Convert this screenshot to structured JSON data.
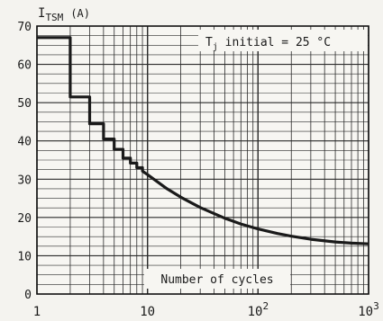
{
  "chart_data": {
    "type": "line",
    "x_scale": "log",
    "xlim": [
      1,
      1000
    ],
    "ylim": [
      0,
      70
    ],
    "grid": true,
    "ylabel": {
      "main": "I",
      "sub": "TSM",
      "unit": "(A)"
    },
    "xlabel": "Number of cycles",
    "annotation": {
      "main": "T",
      "sub": "j",
      "rest": " initial = 25 °C"
    },
    "y_ticks": [
      "0",
      "10",
      "20",
      "30",
      "40",
      "50",
      "60",
      "70"
    ],
    "x_tick_labels": [
      {
        "x": 1,
        "base": "1",
        "exp": ""
      },
      {
        "x": 10,
        "base": "10",
        "exp": ""
      },
      {
        "x": 100,
        "base": "10",
        "exp": "2"
      },
      {
        "x": 1000,
        "base": "10",
        "exp": "3"
      }
    ],
    "series": [
      {
        "x": [
          1,
          2,
          2,
          3,
          3,
          4,
          4,
          5,
          5,
          6,
          6,
          7,
          7,
          8,
          8,
          9,
          9,
          10,
          15,
          20,
          30,
          50,
          70,
          100,
          150,
          200,
          300,
          500,
          700,
          1000
        ],
        "y": [
          67,
          67,
          51.5,
          51.5,
          44.5,
          44.5,
          40.5,
          40.5,
          37.8,
          37.8,
          35.5,
          35.5,
          34.2,
          34.2,
          33.0,
          33.0,
          32.1,
          31.2,
          27.5,
          25.3,
          22.6,
          19.8,
          18.3,
          17.0,
          15.8,
          15.1,
          14.3,
          13.6,
          13.3,
          13.1
        ]
      }
    ]
  }
}
